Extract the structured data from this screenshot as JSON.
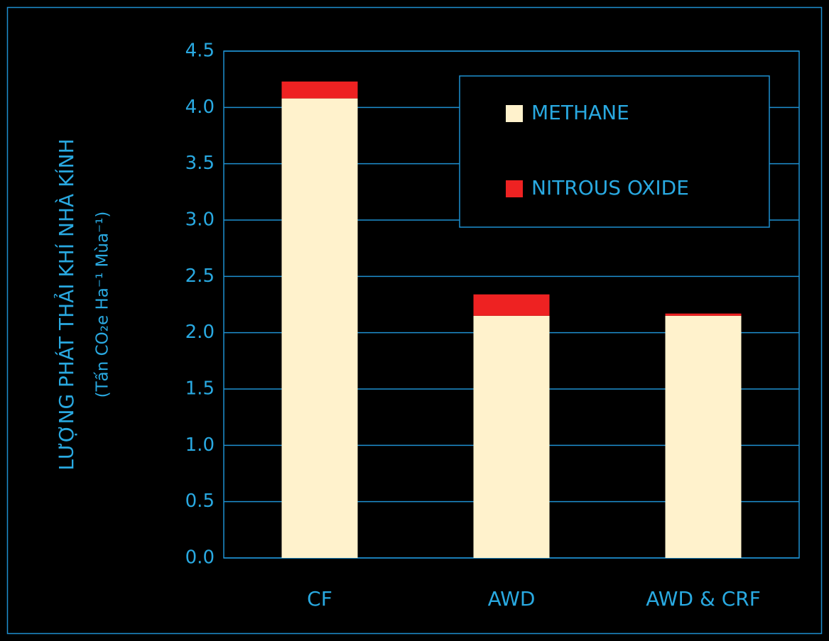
{
  "chart_data": {
    "type": "stacked_bar",
    "ylabel": "LƯỢNG PHÁT THẢI KHÍ NHÀ KÍNH",
    "ylabel2": "(Tấn CO₂e Ha⁻¹ Mùa⁻¹)",
    "categories": [
      "CF",
      "AWD",
      "AWD & CRF"
    ],
    "series": [
      {
        "name": "METHANE",
        "color": "#fff2cc",
        "values": [
          4.08,
          2.15,
          2.15
        ]
      },
      {
        "name": "NITROUS OXIDE",
        "color": "#ee2222",
        "values": [
          0.15,
          0.19,
          0.02
        ]
      }
    ],
    "ylim": [
      0,
      4.5
    ],
    "yticks": [
      {
        "value": 0,
        "label": "0.0"
      },
      0.5,
      {
        "value": 1,
        "label": "1.0"
      },
      1.5,
      {
        "value": 2,
        "label": "2.0"
      },
      2.5,
      {
        "value": 3,
        "label": "3.0"
      },
      3.5,
      {
        "value": 4,
        "label": "4.0"
      },
      4.5
    ],
    "grid": true,
    "legend": "upper right"
  }
}
